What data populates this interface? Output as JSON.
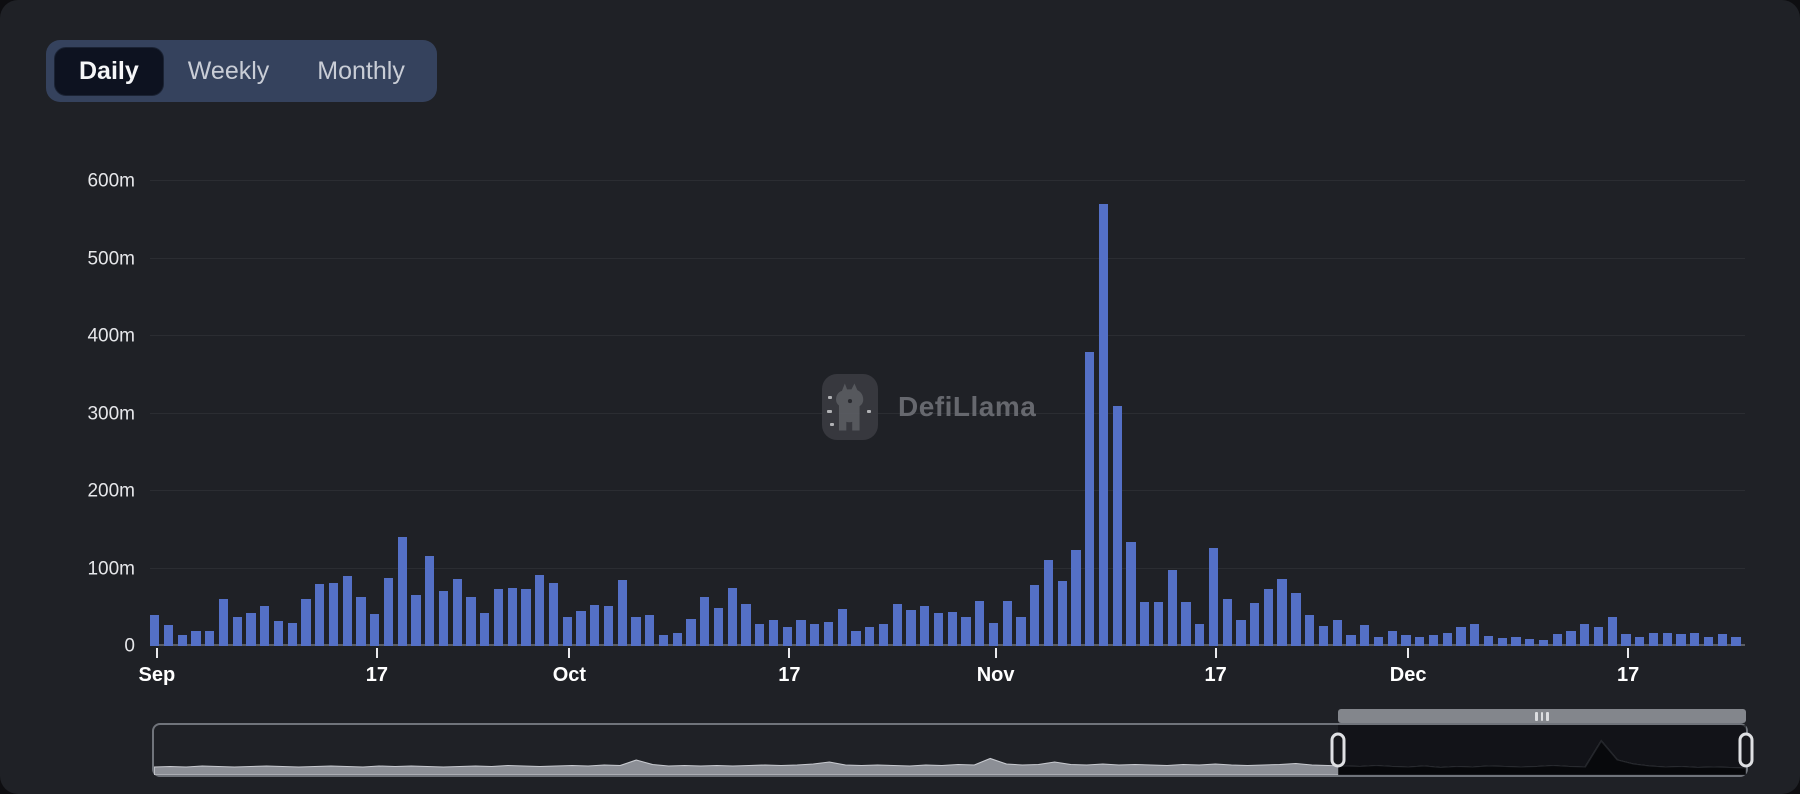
{
  "tabs": {
    "items": [
      {
        "label": "Daily",
        "active": true
      },
      {
        "label": "Weekly",
        "active": false
      },
      {
        "label": "Monthly",
        "active": false
      }
    ]
  },
  "watermark": {
    "label": "DefiLlama",
    "logo": "defillama-llama-icon"
  },
  "colors": {
    "bar": "#5470c6",
    "card_bg": "#1f2126",
    "tab_container": "#35425d",
    "tab_active_bg": "#0d1220",
    "gridline": "#2b2d32",
    "axis_line": "#5a5d63",
    "axis_text": "#e6e7ea",
    "brush_border": "#70747b",
    "brush_area_fill": "#8c8f96",
    "brush_selected_fill": "#0a0b0d",
    "move_bar": "#83868c"
  },
  "chart_data": {
    "type": "bar",
    "unit": "m (millions)",
    "ylim": [
      0,
      600
    ],
    "grid": true,
    "legend_position": "none",
    "yticks": [
      {
        "label": "0",
        "value": 0
      },
      {
        "label": "100m",
        "value": 100
      },
      {
        "label": "200m",
        "value": 200
      },
      {
        "label": "300m",
        "value": 300
      },
      {
        "label": "400m",
        "value": 400
      },
      {
        "label": "500m",
        "value": 500
      },
      {
        "label": "600m",
        "value": 600
      }
    ],
    "xticks": [
      {
        "label": "Sep",
        "index": 0
      },
      {
        "label": "17",
        "index": 16
      },
      {
        "label": "Oct",
        "index": 30
      },
      {
        "label": "17",
        "index": 46
      },
      {
        "label": "Nov",
        "index": 61
      },
      {
        "label": "17",
        "index": 77
      },
      {
        "label": "Dec",
        "index": 91
      },
      {
        "label": "17",
        "index": 107
      }
    ],
    "values": [
      40,
      27,
      14,
      19,
      20,
      61,
      37,
      43,
      51,
      32,
      30,
      61,
      80,
      81,
      90,
      63,
      41,
      88,
      141,
      66,
      116,
      71,
      87,
      63,
      43,
      73,
      75,
      74,
      91,
      81,
      37,
      45,
      53,
      51,
      85,
      37,
      40,
      14,
      17,
      35,
      63,
      49,
      75,
      54,
      29,
      33,
      24,
      34,
      28,
      31,
      48,
      19,
      25,
      28,
      54,
      46,
      52,
      42,
      44,
      38,
      58,
      30,
      58,
      37,
      79,
      111,
      84,
      124,
      380,
      570,
      310,
      134,
      57,
      57,
      98,
      57,
      28,
      127,
      61,
      33,
      56,
      73,
      87,
      68,
      40,
      26,
      34,
      14,
      27,
      12,
      20,
      14,
      12,
      14,
      17,
      25,
      28,
      13,
      10,
      11,
      9,
      8,
      15,
      20,
      29,
      24,
      37,
      16,
      12,
      17,
      17,
      15,
      17,
      12,
      16,
      12
    ]
  },
  "brush": {
    "selection_start_pct": 74.4,
    "selection_end_pct": 100,
    "grip_icon": "drag-grip-icon",
    "overview_values": [
      0.16,
      0.17,
      0.16,
      0.18,
      0.17,
      0.16,
      0.17,
      0.18,
      0.17,
      0.16,
      0.17,
      0.18,
      0.17,
      0.16,
      0.18,
      0.17,
      0.18,
      0.17,
      0.16,
      0.17,
      0.18,
      0.17,
      0.19,
      0.18,
      0.17,
      0.18,
      0.19,
      0.18,
      0.2,
      0.19,
      0.3,
      0.21,
      0.18,
      0.19,
      0.18,
      0.19,
      0.18,
      0.19,
      0.2,
      0.19,
      0.2,
      0.22,
      0.26,
      0.2,
      0.19,
      0.2,
      0.19,
      0.18,
      0.2,
      0.19,
      0.21,
      0.2,
      0.33,
      0.22,
      0.2,
      0.21,
      0.26,
      0.21,
      0.2,
      0.22,
      0.2,
      0.21,
      0.2,
      0.19,
      0.21,
      0.2,
      0.22,
      0.2,
      0.19,
      0.2,
      0.21,
      0.23,
      0.2,
      0.19,
      0.18,
      0.17,
      0.19,
      0.17,
      0.16,
      0.18,
      0.15,
      0.17,
      0.16,
      0.18,
      0.17,
      0.16,
      0.17,
      0.19,
      0.17,
      0.16,
      0.68,
      0.3,
      0.22,
      0.18,
      0.16,
      0.17,
      0.15,
      0.16,
      0.15,
      0.14
    ]
  }
}
